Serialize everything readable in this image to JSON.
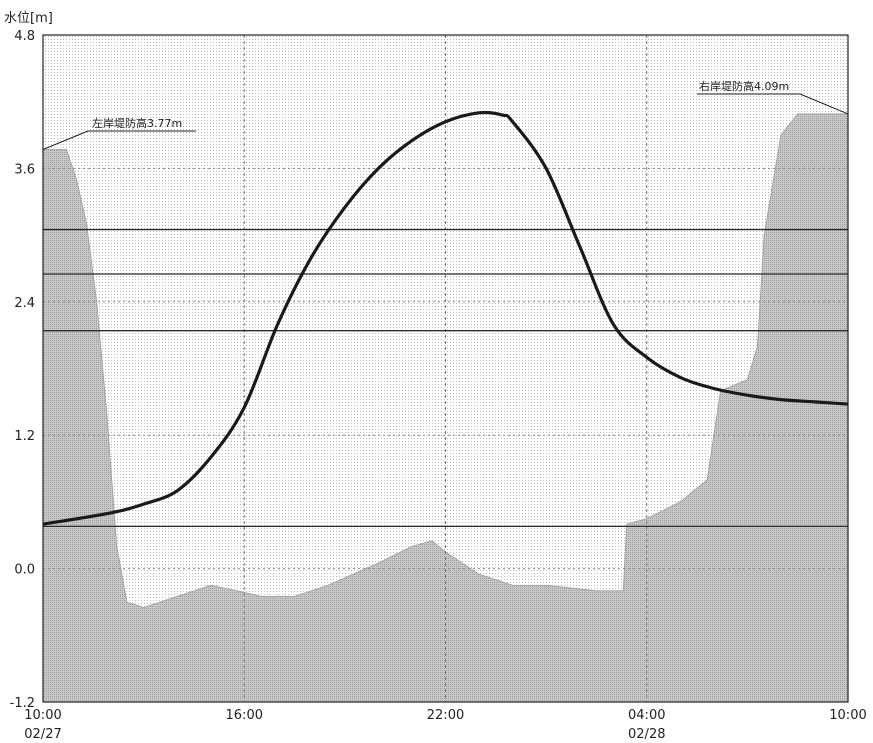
{
  "chart_data": {
    "type": "line",
    "ylabel": "水位[m]",
    "ylim": [
      -1.2,
      4.8
    ],
    "yticks": [
      "4.8",
      "3.6",
      "2.4",
      "1.2",
      "0.0",
      "-1.2"
    ],
    "x_range_hours": [
      0,
      24
    ],
    "xticks": [
      {
        "hour": 0,
        "label": "10:00",
        "sub": "02/27"
      },
      {
        "hour": 6,
        "label": "16:00",
        "sub": ""
      },
      {
        "hour": 12,
        "label": "22:00",
        "sub": ""
      },
      {
        "hour": 18,
        "label": "04:00",
        "sub": "02/28"
      },
      {
        "hour": 24,
        "label": "10:00",
        "sub": ""
      }
    ],
    "series": [
      {
        "x": [
          0,
          2,
          3,
          4,
          5,
          6,
          7,
          8,
          9,
          10,
          11,
          12,
          13,
          13.7,
          14,
          15,
          16,
          17,
          18,
          19,
          20,
          21,
          22,
          23,
          24
        ],
        "y": [
          0.4,
          0.5,
          0.58,
          0.7,
          1.0,
          1.45,
          2.2,
          2.8,
          3.25,
          3.6,
          3.85,
          4.02,
          4.1,
          4.08,
          4.02,
          3.6,
          2.9,
          2.2,
          1.9,
          1.72,
          1.62,
          1.56,
          1.52,
          1.5,
          1.48
        ]
      }
    ],
    "reference_lines": [
      3.05,
      2.65,
      2.14,
      0.38
    ],
    "annotations": [
      {
        "text": "左岸堤防高3.77m",
        "value": 3.77
      },
      {
        "text": "右岸堤防高4.09m",
        "value": 4.09
      }
    ],
    "cross_section": {
      "x": [
        0,
        0.7,
        1.0,
        1.3,
        1.6,
        1.9,
        2.2,
        2.5,
        3.0,
        4.0,
        5.0,
        5.8,
        6.5,
        7.5,
        8.5,
        10.0,
        11.0,
        11.6,
        12.0,
        13.0,
        14.0,
        15.0,
        16.5,
        17.3,
        17.4,
        18.0,
        19.0,
        19.8,
        20.2,
        21.0,
        21.3,
        21.5,
        22.0,
        22.5,
        23.0,
        24.0
      ],
      "y": [
        3.77,
        3.77,
        3.5,
        3.1,
        2.4,
        1.4,
        0.2,
        -0.3,
        -0.35,
        -0.25,
        -0.15,
        -0.2,
        -0.25,
        -0.25,
        -0.15,
        0.05,
        0.2,
        0.25,
        0.15,
        -0.05,
        -0.15,
        -0.15,
        -0.2,
        -0.2,
        0.4,
        0.45,
        0.6,
        0.8,
        1.6,
        1.7,
        2.0,
        3.0,
        3.9,
        4.09,
        4.09,
        4.09
      ]
    }
  }
}
